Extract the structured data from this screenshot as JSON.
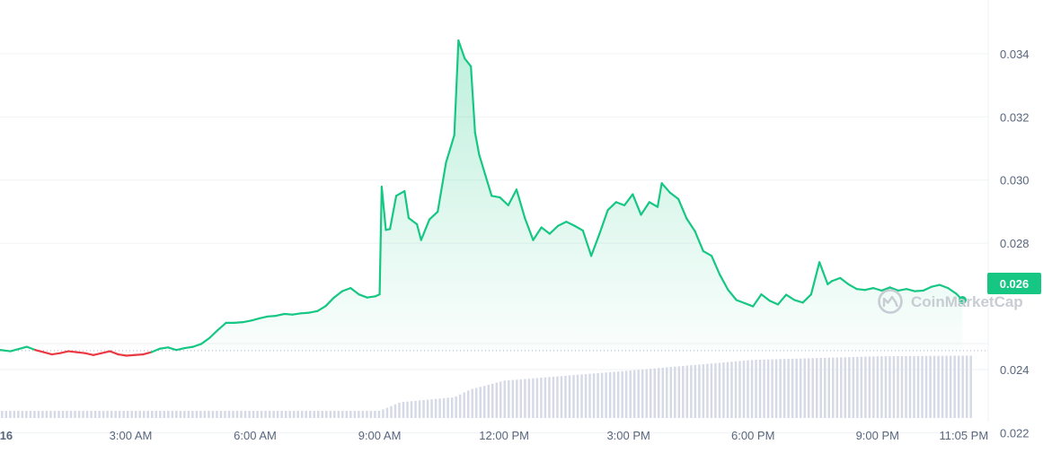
{
  "watermark": "CoinMarketCap",
  "colors": {
    "up": "#16c784",
    "down": "#ea3943",
    "volume": "#d6dae6",
    "grid": "#eff2f5",
    "baseline": "#a6b0c3",
    "axis_text": "#58667e"
  },
  "chart_data": {
    "type": "line",
    "title": "",
    "xlabel": "",
    "ylabel": "",
    "baseline_price": 0.0246,
    "current_price_label": "0.026",
    "ylim": [
      0.0215,
      0.0357
    ],
    "y_ticks": [
      {
        "value": 0.034,
        "label": "0.034"
      },
      {
        "value": 0.032,
        "label": "0.032"
      },
      {
        "value": 0.03,
        "label": "0.030"
      },
      {
        "value": 0.028,
        "label": "0.028"
      },
      {
        "value": 0.024,
        "label": "0.024"
      },
      {
        "value": 0.022,
        "label": "0.022"
      }
    ],
    "x_range_hours": [
      -0.15,
      23.3
    ],
    "x_ticks": [
      {
        "hour": 0,
        "label": "16",
        "day": true
      },
      {
        "hour": 3,
        "label": "3:00 AM"
      },
      {
        "hour": 6,
        "label": "6:00 AM"
      },
      {
        "hour": 9,
        "label": "9:00 AM"
      },
      {
        "hour": 12,
        "label": "12:00 PM"
      },
      {
        "hour": 15,
        "label": "3:00 PM"
      },
      {
        "hour": 18,
        "label": "6:00 PM"
      },
      {
        "hour": 21,
        "label": "9:00 PM"
      },
      {
        "hour": 23.08,
        "label": "11:05 PM"
      }
    ],
    "grid": true,
    "legend": "none",
    "price": {
      "x_hours": [
        -0.15,
        0.1,
        0.3,
        0.5,
        0.7,
        0.9,
        1.1,
        1.3,
        1.5,
        1.7,
        1.9,
        2.1,
        2.3,
        2.5,
        2.7,
        2.9,
        3.1,
        3.3,
        3.5,
        3.7,
        3.9,
        4.1,
        4.3,
        4.5,
        4.7,
        4.9,
        5.1,
        5.3,
        5.5,
        5.7,
        5.9,
        6.1,
        6.3,
        6.5,
        6.7,
        6.9,
        7.1,
        7.3,
        7.5,
        7.7,
        7.9,
        8.1,
        8.3,
        8.5,
        8.7,
        8.9,
        9.0,
        9.05,
        9.15,
        9.25,
        9.4,
        9.6,
        9.7,
        9.9,
        10.0,
        10.2,
        10.4,
        10.6,
        10.8,
        10.9,
        11.05,
        11.2,
        11.3,
        11.4,
        11.55,
        11.7,
        11.9,
        12.1,
        12.3,
        12.5,
        12.7,
        12.9,
        13.1,
        13.3,
        13.5,
        13.7,
        13.9,
        14.1,
        14.3,
        14.5,
        14.7,
        14.9,
        15.1,
        15.3,
        15.5,
        15.7,
        15.8,
        16.0,
        16.2,
        16.4,
        16.6,
        16.8,
        17.0,
        17.2,
        17.4,
        17.6,
        17.8,
        18.0,
        18.2,
        18.4,
        18.6,
        18.8,
        19.0,
        19.2,
        19.4,
        19.6,
        19.8,
        19.9,
        20.1,
        20.3,
        20.5,
        20.7,
        20.9,
        21.1,
        21.3,
        21.5,
        21.7,
        21.9,
        22.1,
        22.3,
        22.5,
        22.7,
        22.9,
        23.05
      ],
      "y": [
        0.02462,
        0.02458,
        0.02465,
        0.02472,
        0.02462,
        0.02455,
        0.02448,
        0.02452,
        0.02458,
        0.02455,
        0.02452,
        0.02446,
        0.02452,
        0.02458,
        0.02448,
        0.02444,
        0.02446,
        0.02448,
        0.02455,
        0.02466,
        0.0247,
        0.02462,
        0.02468,
        0.02472,
        0.02481,
        0.025,
        0.02525,
        0.02548,
        0.02548,
        0.0255,
        0.02555,
        0.02562,
        0.02568,
        0.0257,
        0.02576,
        0.02574,
        0.02578,
        0.0258,
        0.02585,
        0.02601,
        0.02628,
        0.02648,
        0.02658,
        0.02638,
        0.02628,
        0.02632,
        0.02638,
        0.02979,
        0.02842,
        0.02845,
        0.0295,
        0.02965,
        0.0288,
        0.0286,
        0.0281,
        0.02875,
        0.029,
        0.03055,
        0.03142,
        0.03442,
        0.03385,
        0.0336,
        0.0315,
        0.0308,
        0.03015,
        0.0295,
        0.02945,
        0.0292,
        0.0297,
        0.0288,
        0.0281,
        0.0285,
        0.0283,
        0.02855,
        0.02868,
        0.02855,
        0.0284,
        0.0276,
        0.0283,
        0.02905,
        0.0293,
        0.0292,
        0.02955,
        0.0289,
        0.0293,
        0.02915,
        0.0299,
        0.0296,
        0.0294,
        0.02878,
        0.02838,
        0.02775,
        0.0276,
        0.027,
        0.02652,
        0.0262,
        0.0261,
        0.026,
        0.02638,
        0.02618,
        0.02606,
        0.02637,
        0.0262,
        0.02612,
        0.02638,
        0.0274,
        0.0267,
        0.0268,
        0.0269,
        0.0267,
        0.02655,
        0.02652,
        0.02658,
        0.0265,
        0.0266,
        0.0265,
        0.02655,
        0.02648,
        0.0265,
        0.02662,
        0.02668,
        0.02658,
        0.0264,
        0.0262
      ]
    },
    "volume": {
      "x_start_hour": -0.1,
      "x_end_hour": 23.25,
      "bars": 240,
      "levels": [
        {
          "hour": -0.1,
          "rel": 0.1
        },
        {
          "hour": 9.0,
          "rel": 0.1
        },
        {
          "hour": 9.5,
          "rel": 0.22
        },
        {
          "hour": 10.8,
          "rel": 0.29
        },
        {
          "hour": 11.2,
          "rel": 0.4
        },
        {
          "hour": 12.0,
          "rel": 0.52
        },
        {
          "hour": 15.0,
          "rel": 0.66
        },
        {
          "hour": 18.0,
          "rel": 0.81
        },
        {
          "hour": 21.0,
          "rel": 0.86
        },
        {
          "hour": 23.25,
          "rel": 0.87
        }
      ]
    }
  }
}
